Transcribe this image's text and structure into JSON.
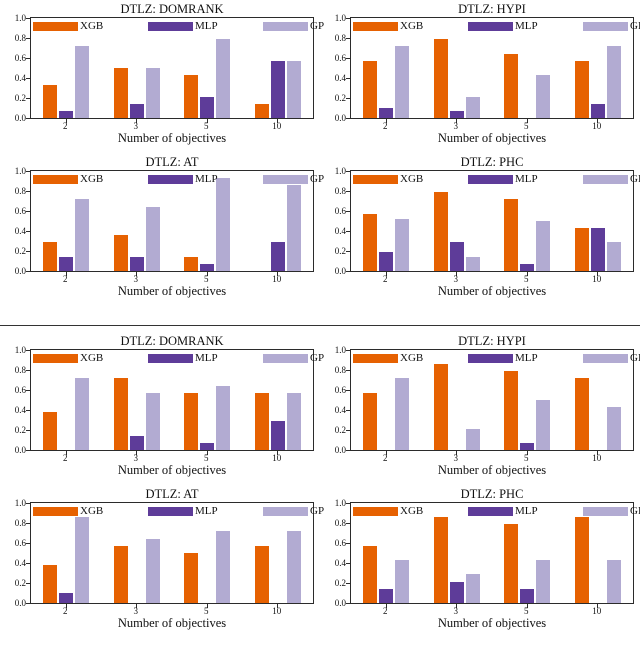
{
  "figure": {
    "xlabel": "Number of objectives",
    "categories": [
      "2",
      "3",
      "5",
      "10"
    ],
    "yticks": [
      "1.0",
      "0.8",
      "0.6",
      "0.4",
      "0.2",
      "0.0"
    ],
    "ylim": [
      0,
      1
    ],
    "legend": [
      "XGB",
      "MLP",
      "GP"
    ],
    "legend_position": "top-inside-horizontal",
    "grid": false
  },
  "colors": {
    "XGB": "#e66101",
    "MLP": "#5e3c99",
    "GP": "#b2abd2",
    "axis": "#2b2b2b",
    "divider": "#333333"
  },
  "chart_data": [
    {
      "type": "bar",
      "group": 1,
      "title": "DTLZ: DOMRANK",
      "categories": [
        "2",
        "3",
        "5",
        "10"
      ],
      "xlabel": "Number of objectives",
      "ylim": [
        0,
        1
      ],
      "series": [
        {
          "name": "XGB",
          "values": [
            0.33,
            0.5,
            0.43,
            0.14
          ]
        },
        {
          "name": "MLP",
          "values": [
            0.07,
            0.14,
            0.21,
            0.57
          ]
        },
        {
          "name": "GP",
          "values": [
            0.72,
            0.5,
            0.79,
            0.57
          ]
        }
      ]
    },
    {
      "type": "bar",
      "group": 1,
      "title": "DTLZ: HYPI",
      "categories": [
        "2",
        "3",
        "5",
        "10"
      ],
      "xlabel": "Number of objectives",
      "ylim": [
        0,
        1
      ],
      "series": [
        {
          "name": "XGB",
          "values": [
            0.57,
            0.79,
            0.64,
            0.57
          ]
        },
        {
          "name": "MLP",
          "values": [
            0.1,
            0.07,
            0,
            0.14
          ]
        },
        {
          "name": "GP",
          "values": [
            0.72,
            0.21,
            0.43,
            0.72
          ]
        }
      ]
    },
    {
      "type": "bar",
      "group": 1,
      "title": "DTLZ: AT",
      "categories": [
        "2",
        "3",
        "5",
        "10"
      ],
      "xlabel": "Number of objectives",
      "ylim": [
        0,
        1
      ],
      "series": [
        {
          "name": "XGB",
          "values": [
            0.29,
            0.36,
            0.14,
            0
          ]
        },
        {
          "name": "MLP",
          "values": [
            0.14,
            0.14,
            0.07,
            0.29
          ]
        },
        {
          "name": "GP",
          "values": [
            0.72,
            0.64,
            0.93,
            0.86
          ]
        }
      ]
    },
    {
      "type": "bar",
      "group": 1,
      "title": "DTLZ: PHC",
      "categories": [
        "2",
        "3",
        "5",
        "10"
      ],
      "xlabel": "Number of objectives",
      "ylim": [
        0,
        1
      ],
      "series": [
        {
          "name": "XGB",
          "values": [
            0.57,
            0.79,
            0.72,
            0.43
          ]
        },
        {
          "name": "MLP",
          "values": [
            0.19,
            0.29,
            0.07,
            0.43
          ]
        },
        {
          "name": "GP",
          "values": [
            0.52,
            0.14,
            0.5,
            0.29
          ]
        }
      ]
    },
    {
      "type": "bar",
      "group": 2,
      "title": "DTLZ: DOMRANK",
      "categories": [
        "2",
        "3",
        "5",
        "10"
      ],
      "xlabel": "Number of objectives",
      "ylim": [
        0,
        1
      ],
      "series": [
        {
          "name": "XGB",
          "values": [
            0.38,
            0.72,
            0.57,
            0.57
          ]
        },
        {
          "name": "MLP",
          "values": [
            0,
            0.14,
            0.07,
            0.29
          ]
        },
        {
          "name": "GP",
          "values": [
            0.72,
            0.57,
            0.64,
            0.57
          ]
        }
      ]
    },
    {
      "type": "bar",
      "group": 2,
      "title": "DTLZ: HYPI",
      "categories": [
        "2",
        "3",
        "5",
        "10"
      ],
      "xlabel": "Number of objectives",
      "ylim": [
        0,
        1
      ],
      "series": [
        {
          "name": "XGB",
          "values": [
            0.57,
            0.86,
            0.79,
            0.72
          ]
        },
        {
          "name": "MLP",
          "values": [
            0,
            0,
            0.07,
            0
          ]
        },
        {
          "name": "GP",
          "values": [
            0.72,
            0.21,
            0.5,
            0.43
          ]
        }
      ]
    },
    {
      "type": "bar",
      "group": 2,
      "title": "DTLZ: AT",
      "categories": [
        "2",
        "3",
        "5",
        "10"
      ],
      "xlabel": "Number of objectives",
      "ylim": [
        0,
        1
      ],
      "series": [
        {
          "name": "XGB",
          "values": [
            0.38,
            0.57,
            0.5,
            0.57
          ]
        },
        {
          "name": "MLP",
          "values": [
            0.1,
            0,
            0,
            0
          ]
        },
        {
          "name": "GP",
          "values": [
            0.86,
            0.64,
            0.72,
            0.72
          ]
        }
      ]
    },
    {
      "type": "bar",
      "group": 2,
      "title": "DTLZ: PHC",
      "categories": [
        "2",
        "3",
        "5",
        "10"
      ],
      "xlabel": "Number of objectives",
      "ylim": [
        0,
        1
      ],
      "series": [
        {
          "name": "XGB",
          "values": [
            0.57,
            0.86,
            0.79,
            0.86
          ]
        },
        {
          "name": "MLP",
          "values": [
            0.14,
            0.21,
            0.14,
            0
          ]
        },
        {
          "name": "GP",
          "values": [
            0.43,
            0.29,
            0.43,
            0.43
          ]
        }
      ]
    }
  ]
}
